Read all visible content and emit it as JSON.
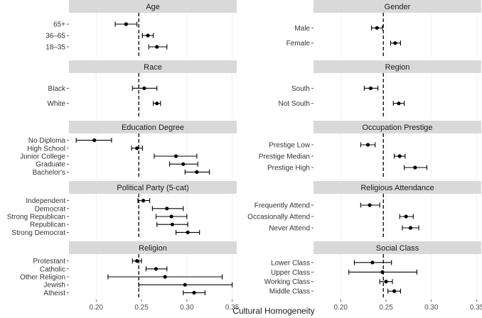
{
  "chart_data": {
    "type": "scatter",
    "xlabel": "Cultural Homogeneity",
    "xlim": [
      0.17,
      0.355
    ],
    "xticks": [
      "0.20",
      "0.25",
      "0.30",
      "0.35"
    ],
    "xtick_values": [
      0.2,
      0.25,
      0.3,
      0.35
    ],
    "reference_line": 0.247,
    "panels": [
      {
        "title": "Age",
        "items": [
          {
            "label": "65+",
            "est": 0.233,
            "lo": 0.221,
            "hi": 0.245
          },
          {
            "label": "36–65",
            "est": 0.257,
            "lo": 0.251,
            "hi": 0.263
          },
          {
            "label": "18–35",
            "est": 0.267,
            "lo": 0.258,
            "hi": 0.278
          }
        ]
      },
      {
        "title": "Gender",
        "items": [
          {
            "label": "Male",
            "est": 0.24,
            "lo": 0.234,
            "hi": 0.246
          },
          {
            "label": "Female",
            "est": 0.26,
            "lo": 0.255,
            "hi": 0.266
          }
        ]
      },
      {
        "title": "Race",
        "items": [
          {
            "label": "Black",
            "est": 0.253,
            "lo": 0.24,
            "hi": 0.267
          },
          {
            "label": "White",
            "est": 0.267,
            "lo": 0.263,
            "hi": 0.271
          }
        ]
      },
      {
        "title": "Region",
        "items": [
          {
            "label": "South",
            "est": 0.233,
            "lo": 0.226,
            "hi": 0.241
          },
          {
            "label": "Not South",
            "est": 0.264,
            "lo": 0.258,
            "hi": 0.27
          }
        ]
      },
      {
        "title": "Education Degree",
        "items": [
          {
            "label": "No Diploma",
            "est": 0.198,
            "lo": 0.178,
            "hi": 0.217
          },
          {
            "label": "High School",
            "est": 0.245,
            "lo": 0.239,
            "hi": 0.251
          },
          {
            "label": "Junior College",
            "est": 0.288,
            "lo": 0.264,
            "hi": 0.311
          },
          {
            "label": "Graduate",
            "est": 0.296,
            "lo": 0.281,
            "hi": 0.312
          },
          {
            "label": "Bachelor's",
            "est": 0.311,
            "lo": 0.298,
            "hi": 0.325
          }
        ]
      },
      {
        "title": "Occupation Prestige",
        "items": [
          {
            "label": "Prestige Low",
            "est": 0.23,
            "lo": 0.222,
            "hi": 0.238
          },
          {
            "label": "Prestige Median",
            "est": 0.265,
            "lo": 0.259,
            "hi": 0.271
          },
          {
            "label": "Prestige High",
            "est": 0.282,
            "lo": 0.27,
            "hi": 0.295
          }
        ]
      },
      {
        "title": "Political Party (5-cat)",
        "items": [
          {
            "label": "Independent",
            "est": 0.252,
            "lo": 0.246,
            "hi": 0.259
          },
          {
            "label": "Democrat",
            "est": 0.278,
            "lo": 0.262,
            "hi": 0.296
          },
          {
            "label": "Strong Republican",
            "est": 0.283,
            "lo": 0.266,
            "hi": 0.3
          },
          {
            "label": "Republican",
            "est": 0.284,
            "lo": 0.267,
            "hi": 0.301
          },
          {
            "label": "Strong Democrat",
            "est": 0.301,
            "lo": 0.288,
            "hi": 0.314
          }
        ]
      },
      {
        "title": "Religious Attendance",
        "items": [
          {
            "label": "Frequently Attend",
            "est": 0.232,
            "lo": 0.222,
            "hi": 0.243
          },
          {
            "label": "Occasionally Attend",
            "est": 0.272,
            "lo": 0.265,
            "hi": 0.28
          },
          {
            "label": "Never Attend",
            "est": 0.277,
            "lo": 0.268,
            "hi": 0.286
          }
        ]
      },
      {
        "title": "Religion",
        "items": [
          {
            "label": "Protestant",
            "est": 0.245,
            "lo": 0.24,
            "hi": 0.25
          },
          {
            "label": "Catholic",
            "est": 0.266,
            "lo": 0.255,
            "hi": 0.278
          },
          {
            "label": "Other Religion",
            "est": 0.276,
            "lo": 0.213,
            "hi": 0.339
          },
          {
            "label": "Jewish",
            "est": 0.298,
            "lo": 0.247,
            "hi": 0.35
          },
          {
            "label": "Atheist",
            "est": 0.308,
            "lo": 0.296,
            "hi": 0.32
          }
        ]
      },
      {
        "title": "Social Class",
        "items": [
          {
            "label": "Lower Class",
            "est": 0.235,
            "lo": 0.215,
            "hi": 0.256
          },
          {
            "label": "Upper Class",
            "est": 0.246,
            "lo": 0.209,
            "hi": 0.284
          },
          {
            "label": "Working Class",
            "est": 0.25,
            "lo": 0.243,
            "hi": 0.257
          },
          {
            "label": "Middle Class",
            "est": 0.259,
            "lo": 0.252,
            "hi": 0.266
          }
        ]
      }
    ]
  }
}
